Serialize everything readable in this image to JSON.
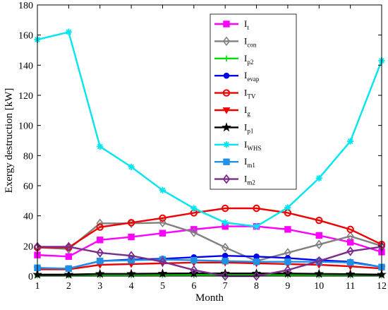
{
  "chart_data": {
    "type": "line",
    "xlabel": "Month",
    "ylabel": "Exergy destruction [kW]",
    "title": "",
    "xlim": [
      1,
      12
    ],
    "ylim": [
      0,
      180
    ],
    "x": [
      1,
      2,
      3,
      4,
      5,
      6,
      7,
      8,
      9,
      10,
      11,
      12
    ],
    "xticks": [
      "1",
      "2",
      "3",
      "4",
      "5",
      "6",
      "7",
      "8",
      "9",
      "10",
      "11",
      "12"
    ],
    "yticks": [
      "0",
      "20",
      "40",
      "60",
      "80",
      "100",
      "120",
      "140",
      "160",
      "180"
    ],
    "grid": false,
    "legend_position": "top-right",
    "series": [
      {
        "name": "I",
        "sub": "t",
        "color": "#ff00ff",
        "marker": "square",
        "values": [
          14,
          13,
          24,
          26,
          28.5,
          31,
          33,
          33,
          31,
          27,
          22.5,
          16
        ]
      },
      {
        "name": "I",
        "sub": "con",
        "color": "#808080",
        "marker": "diamond",
        "values": [
          19,
          18,
          35,
          35,
          35.5,
          29,
          19,
          10,
          15.5,
          21,
          26.5,
          20
        ]
      },
      {
        "name": "I",
        "sub": "p2",
        "color": "#00dd00",
        "marker": "plus",
        "values": [
          0.5,
          0.5,
          0.6,
          0.6,
          0.7,
          0.7,
          0.7,
          0.7,
          0.6,
          0.6,
          0.5,
          0.5
        ]
      },
      {
        "name": "I",
        "sub": "evap",
        "color": "#0000ee",
        "marker": "circle",
        "values": [
          5,
          5,
          10,
          11,
          11.5,
          12.5,
          13.5,
          13,
          12,
          10.5,
          9.5,
          6
        ]
      },
      {
        "name": "I",
        "sub": "TV",
        "color": "#ee0000",
        "marker": "circle-open",
        "values": [
          19,
          19,
          32.5,
          35.5,
          38.5,
          42,
          45,
          45,
          42,
          37,
          31,
          21
        ]
      },
      {
        "name": "I",
        "sub": "g",
        "color": "#ee0000",
        "marker": "triangle-down",
        "values": [
          4.5,
          4.5,
          7.5,
          8,
          8.5,
          9,
          9,
          8.5,
          8,
          7.5,
          6.5,
          5
        ]
      },
      {
        "name": "I",
        "sub": "p1",
        "color": "#000000",
        "marker": "star",
        "values": [
          1,
          1,
          1.5,
          1.5,
          1.7,
          1.8,
          1.8,
          1.8,
          1.7,
          1.5,
          1.3,
          1
        ]
      },
      {
        "name": "I",
        "sub": "WHS",
        "color": "#00e5ee",
        "marker": "asterisk",
        "values": [
          157,
          162,
          86,
          72.5,
          57,
          45,
          35.5,
          33,
          45.5,
          65,
          89.5,
          143
        ]
      },
      {
        "name": "I",
        "sub": "m1",
        "color": "#1e90e6",
        "marker": "square",
        "values": [
          5.5,
          5,
          10,
          10.5,
          11,
          10.5,
          10,
          9.5,
          9.5,
          9.5,
          9,
          6
        ]
      },
      {
        "name": "I",
        "sub": "m2",
        "color": "#7b2d8b",
        "marker": "diamond-open",
        "values": [
          19.5,
          19.5,
          15.5,
          13.5,
          9.5,
          4,
          0,
          0,
          4,
          10,
          16.5,
          19.5
        ]
      }
    ]
  }
}
